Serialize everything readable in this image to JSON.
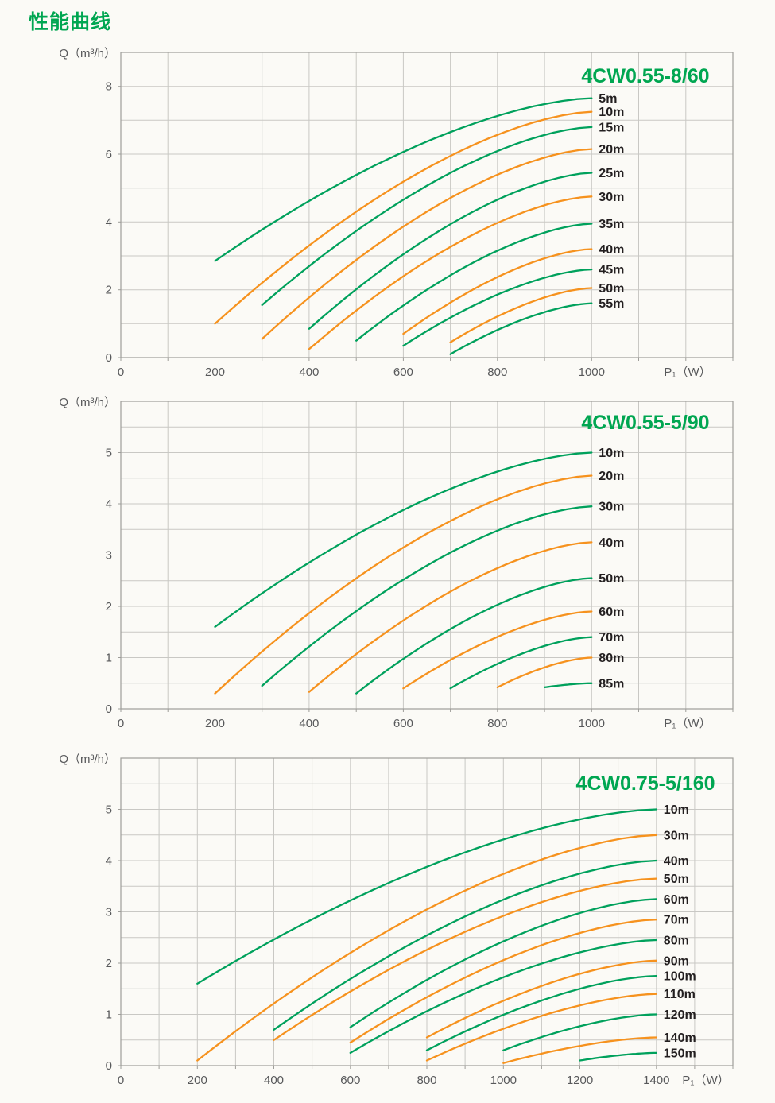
{
  "page": {
    "heading": "性能曲线"
  },
  "colors": {
    "green": "#00a15c",
    "orange": "#f6921e",
    "title": "#00a651",
    "grid": "#c9c8c4",
    "border": "#9e9d99",
    "tick": "#58595b",
    "label": "#231f20",
    "bg": "#fbfaf6"
  },
  "chart_data": [
    {
      "type": "line",
      "title": "4CW0.55-8/60",
      "ylabel": "Q（m³/h）",
      "xlabel": "P₁（W）",
      "x_ticks": [
        0,
        200,
        400,
        600,
        800,
        1000
      ],
      "y_ticks": [
        0,
        2,
        4,
        6,
        8
      ],
      "x_range": [
        0,
        1300
      ],
      "y_range": [
        0,
        9
      ],
      "x_grid_step": 100,
      "y_grid_step": 1,
      "grid": true,
      "legend_position": "labels-at-curve-ends",
      "curve_model": "q(t) = q_start + (q_end - q_start) * (1 - (1-t)^1.6), t from x_start to x_end",
      "series": [
        {
          "name": "5m",
          "color": "green",
          "points": [
            [
              200,
              2.85
            ],
            [
              1000,
              7.65
            ]
          ]
        },
        {
          "name": "10m",
          "color": "orange",
          "points": [
            [
              200,
              1.0
            ],
            [
              1000,
              7.25
            ]
          ]
        },
        {
          "name": "15m",
          "color": "green",
          "points": [
            [
              300,
              1.55
            ],
            [
              1000,
              6.8
            ]
          ]
        },
        {
          "name": "20m",
          "color": "orange",
          "points": [
            [
              300,
              0.55
            ],
            [
              1000,
              6.15
            ]
          ]
        },
        {
          "name": "25m",
          "color": "green",
          "points": [
            [
              400,
              0.85
            ],
            [
              1000,
              5.45
            ]
          ]
        },
        {
          "name": "30m",
          "color": "orange",
          "points": [
            [
              400,
              0.25
            ],
            [
              1000,
              4.75
            ]
          ]
        },
        {
          "name": "35m",
          "color": "green",
          "points": [
            [
              500,
              0.5
            ],
            [
              1000,
              3.95
            ]
          ]
        },
        {
          "name": "40m",
          "color": "orange",
          "points": [
            [
              600,
              0.7
            ],
            [
              1000,
              3.2
            ]
          ]
        },
        {
          "name": "45m",
          "color": "green",
          "points": [
            [
              600,
              0.35
            ],
            [
              1000,
              2.6
            ]
          ]
        },
        {
          "name": "50m",
          "color": "orange",
          "points": [
            [
              700,
              0.45
            ],
            [
              1000,
              2.05
            ]
          ]
        },
        {
          "name": "55m",
          "color": "green",
          "points": [
            [
              700,
              0.1
            ],
            [
              1000,
              1.6
            ]
          ]
        }
      ]
    },
    {
      "type": "line",
      "title": "4CW0.55-5/90",
      "ylabel": "Q（m³/h）",
      "xlabel": "P₁（W）",
      "x_ticks": [
        0,
        200,
        400,
        600,
        800,
        1000
      ],
      "y_ticks": [
        0,
        1,
        2,
        3,
        4,
        5
      ],
      "x_range": [
        0,
        1300
      ],
      "y_range": [
        0,
        6
      ],
      "x_grid_step": 100,
      "y_grid_step": 0.5,
      "grid": true,
      "legend_position": "labels-at-curve-ends",
      "curve_model": "q(t) = q_start + (q_end - q_start) * (1 - (1-t)^1.6), t from x_start to x_end",
      "series": [
        {
          "name": "10m",
          "color": "green",
          "points": [
            [
              200,
              1.6
            ],
            [
              1000,
              5.0
            ]
          ]
        },
        {
          "name": "20m",
          "color": "orange",
          "points": [
            [
              200,
              0.3
            ],
            [
              1000,
              4.55
            ]
          ]
        },
        {
          "name": "30m",
          "color": "green",
          "points": [
            [
              300,
              0.45
            ],
            [
              1000,
              3.95
            ]
          ]
        },
        {
          "name": "40m",
          "color": "orange",
          "points": [
            [
              400,
              0.33
            ],
            [
              1000,
              3.25
            ]
          ]
        },
        {
          "name": "50m",
          "color": "green",
          "points": [
            [
              500,
              0.3
            ],
            [
              1000,
              2.55
            ]
          ]
        },
        {
          "name": "60m",
          "color": "orange",
          "points": [
            [
              600,
              0.4
            ],
            [
              1000,
              1.9
            ]
          ]
        },
        {
          "name": "70m",
          "color": "green",
          "points": [
            [
              700,
              0.4
            ],
            [
              1000,
              1.4
            ]
          ]
        },
        {
          "name": "80m",
          "color": "orange",
          "points": [
            [
              800,
              0.42
            ],
            [
              1000,
              1.0
            ]
          ]
        },
        {
          "name": "85m",
          "color": "green",
          "points": [
            [
              900,
              0.42
            ],
            [
              1000,
              0.5
            ]
          ]
        }
      ]
    },
    {
      "type": "line",
      "title": "4CW0.75-5/160",
      "ylabel": "Q（m³/h）",
      "xlabel": "P₁（W）",
      "x_ticks": [
        0,
        200,
        400,
        600,
        800,
        1000,
        1200,
        1400
      ],
      "y_ticks": [
        0,
        1,
        2,
        3,
        4,
        5
      ],
      "x_range": [
        0,
        1600
      ],
      "y_range": [
        0,
        6
      ],
      "x_grid_step": 100,
      "y_grid_step": 0.5,
      "grid": true,
      "legend_position": "labels-at-curve-ends",
      "curve_model": "q(t) = q_start + (q_end - q_start) * (1 - (1-t)^1.6), t from x_start to x_end",
      "series": [
        {
          "name": "10m",
          "color": "green",
          "points": [
            [
              200,
              1.6
            ],
            [
              1400,
              5.0
            ]
          ]
        },
        {
          "name": "30m",
          "color": "orange",
          "points": [
            [
              200,
              0.1
            ],
            [
              1400,
              4.5
            ]
          ]
        },
        {
          "name": "40m",
          "color": "green",
          "points": [
            [
              400,
              0.7
            ],
            [
              1400,
              4.0
            ]
          ]
        },
        {
          "name": "50m",
          "color": "orange",
          "points": [
            [
              400,
              0.5
            ],
            [
              1400,
              3.65
            ]
          ]
        },
        {
          "name": "60m",
          "color": "green",
          "points": [
            [
              600,
              0.75
            ],
            [
              1400,
              3.25
            ]
          ]
        },
        {
          "name": "70m",
          "color": "orange",
          "points": [
            [
              600,
              0.45
            ],
            [
              1400,
              2.85
            ]
          ]
        },
        {
          "name": "80m",
          "color": "green",
          "points": [
            [
              600,
              0.25
            ],
            [
              1400,
              2.45
            ]
          ]
        },
        {
          "name": "90m",
          "color": "orange",
          "points": [
            [
              800,
              0.55
            ],
            [
              1400,
              2.05
            ]
          ]
        },
        {
          "name": "100m",
          "color": "green",
          "points": [
            [
              800,
              0.3
            ],
            [
              1400,
              1.75
            ]
          ]
        },
        {
          "name": "110m",
          "color": "orange",
          "points": [
            [
              800,
              0.1
            ],
            [
              1400,
              1.4
            ]
          ]
        },
        {
          "name": "120m",
          "color": "green",
          "points": [
            [
              1000,
              0.3
            ],
            [
              1400,
              1.0
            ]
          ]
        },
        {
          "name": "140m",
          "color": "orange",
          "points": [
            [
              1000,
              0.05
            ],
            [
              1400,
              0.55
            ]
          ]
        },
        {
          "name": "150m",
          "color": "green",
          "points": [
            [
              1200,
              0.1
            ],
            [
              1400,
              0.25
            ]
          ]
        }
      ]
    }
  ]
}
